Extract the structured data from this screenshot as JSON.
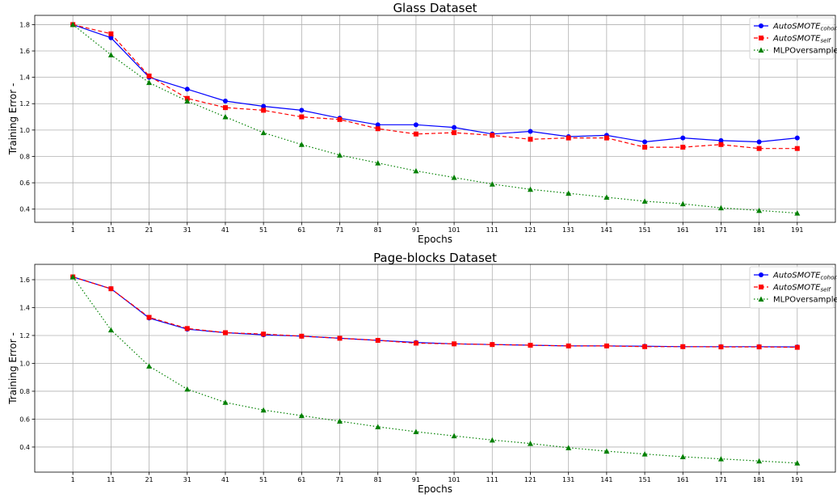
{
  "chart_data": [
    {
      "type": "line",
      "title": "Glass Dataset",
      "xlabel": "Epochs",
      "ylabel": "Training Error -",
      "x": [
        1,
        11,
        21,
        31,
        41,
        51,
        61,
        71,
        81,
        91,
        101,
        111,
        121,
        131,
        141,
        151,
        161,
        171,
        181,
        191
      ],
      "xlim": [
        -9,
        201
      ],
      "ylim": [
        0.3,
        1.87
      ],
      "yticks": [
        0.4,
        0.6,
        0.8,
        1.0,
        1.2,
        1.4,
        1.6,
        1.8
      ],
      "ytick_labels": [
        "0.4",
        "0.6",
        "0.8",
        "1.0",
        "1.2",
        "1.4",
        "1.6",
        "1.8"
      ],
      "grid": true,
      "legend_position": "top-right",
      "series": [
        {
          "name": "AutoSMOTE",
          "name_sub": "cohort",
          "color": "#0000ff",
          "marker": "circle",
          "linestyle": "solid",
          "values": [
            1.8,
            1.7,
            1.4,
            1.31,
            1.22,
            1.18,
            1.15,
            1.09,
            1.04,
            1.04,
            1.02,
            0.97,
            0.99,
            0.95,
            0.96,
            0.91,
            0.94,
            0.92,
            0.91,
            0.94
          ]
        },
        {
          "name": "AutoSMOTE",
          "name_sub": "self",
          "color": "#ff0000",
          "marker": "square",
          "linestyle": "dashed",
          "values": [
            1.8,
            1.73,
            1.41,
            1.24,
            1.17,
            1.15,
            1.1,
            1.08,
            1.01,
            0.97,
            0.98,
            0.96,
            0.93,
            0.94,
            0.94,
            0.87,
            0.87,
            0.89,
            0.86,
            0.86
          ]
        },
        {
          "name": "MLPOversampler",
          "name_sub": "",
          "color": "#008000",
          "marker": "triangle",
          "linestyle": "dotted",
          "values": [
            1.8,
            1.57,
            1.36,
            1.22,
            1.1,
            0.98,
            0.89,
            0.81,
            0.75,
            0.69,
            0.64,
            0.59,
            0.55,
            0.52,
            0.49,
            0.46,
            0.44,
            0.41,
            0.39,
            0.37
          ]
        }
      ]
    },
    {
      "type": "line",
      "title": "Page-blocks Dataset",
      "xlabel": "Epochs",
      "ylabel": "Training Error -",
      "x": [
        1,
        11,
        21,
        31,
        41,
        51,
        61,
        71,
        81,
        91,
        101,
        111,
        121,
        131,
        141,
        151,
        161,
        171,
        181,
        191
      ],
      "xlim": [
        -9,
        201
      ],
      "ylim": [
        0.22,
        1.71
      ],
      "yticks": [
        0.4,
        0.6,
        0.8,
        1.0,
        1.2,
        1.4,
        1.6
      ],
      "ytick_labels": [
        "0.4",
        "0.6",
        "0.8",
        "1.0",
        "1.2",
        "1.4",
        "1.6"
      ],
      "grid": true,
      "legend_position": "top-right",
      "series": [
        {
          "name": "AutoSMOTE",
          "name_sub": "cohort",
          "color": "#0000ff",
          "marker": "circle",
          "linestyle": "solid",
          "values": [
            1.62,
            1.535,
            1.325,
            1.245,
            1.22,
            1.205,
            1.195,
            1.18,
            1.165,
            1.15,
            1.14,
            1.135,
            1.13,
            1.125,
            1.125,
            1.123,
            1.12,
            1.12,
            1.12,
            1.118
          ]
        },
        {
          "name": "AutoSMOTE",
          "name_sub": "self",
          "color": "#ff0000",
          "marker": "square",
          "linestyle": "dashed",
          "values": [
            1.62,
            1.535,
            1.33,
            1.25,
            1.22,
            1.21,
            1.195,
            1.18,
            1.165,
            1.145,
            1.14,
            1.135,
            1.13,
            1.125,
            1.125,
            1.12,
            1.12,
            1.118,
            1.118,
            1.115
          ]
        },
        {
          "name": "MLPOversampler",
          "name_sub": "",
          "color": "#008000",
          "marker": "triangle",
          "linestyle": "dotted",
          "values": [
            1.62,
            1.24,
            0.98,
            0.815,
            0.72,
            0.665,
            0.625,
            0.585,
            0.545,
            0.51,
            0.48,
            0.45,
            0.425,
            0.395,
            0.37,
            0.35,
            0.33,
            0.315,
            0.3,
            0.285
          ]
        }
      ]
    }
  ]
}
